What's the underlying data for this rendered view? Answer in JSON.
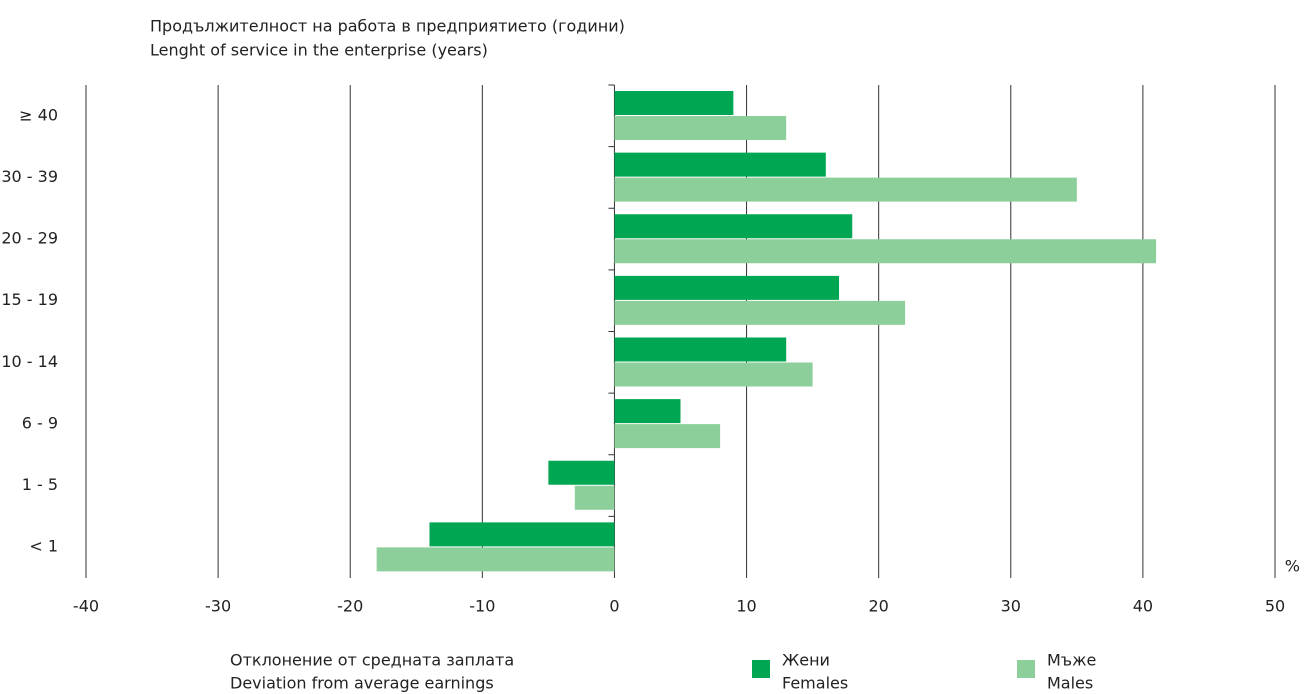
{
  "chart_data": {
    "type": "hbar",
    "title": "Продължителност на работа в предприятието (години)",
    "subtitle": "Lenght of service in the enterprise (years)",
    "xlabel": "Отклонение от средната заплата",
    "xlabel_en": "Deviation from average earnings",
    "x_unit": "%",
    "categories": [
      "≥ 40",
      "30 - 39",
      "20 - 29",
      "15 - 19",
      "10 - 14",
      "6 - 9",
      "1 - 5",
      "< 1"
    ],
    "series": [
      {
        "name": "Жени",
        "name_en": "Females",
        "color": "#00a651",
        "values": [
          9,
          16,
          18,
          17,
          13,
          5,
          -5,
          -14
        ]
      },
      {
        "name": "Мъже",
        "name_en": "Males",
        "color": "#8ccf9b",
        "values": [
          13,
          35,
          41,
          22,
          15,
          8,
          -3,
          -18
        ]
      }
    ],
    "xlim": [
      -40,
      50
    ],
    "xticks": [
      -40,
      -30,
      -20,
      -10,
      0,
      10,
      20,
      30,
      40,
      50
    ],
    "grid": true
  }
}
